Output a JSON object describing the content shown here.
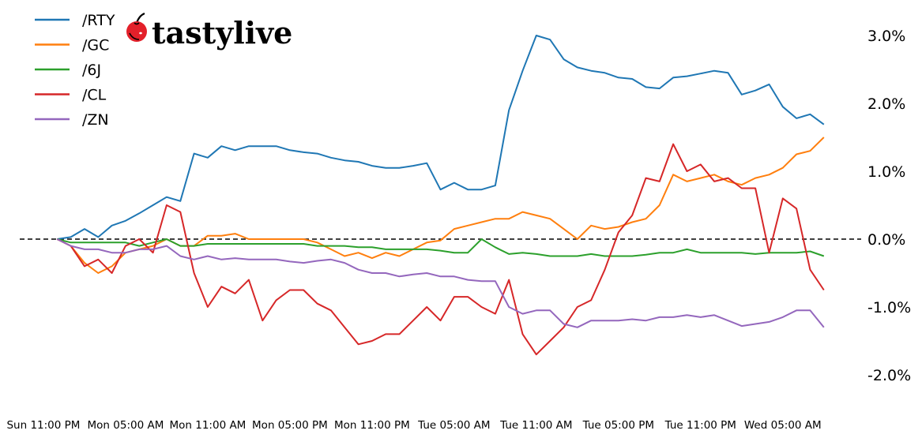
{
  "logo": {
    "text": "tastylive"
  },
  "chart_data": {
    "type": "line",
    "title": "",
    "xlabel": "",
    "ylabel": "",
    "y_unit": "%",
    "ylim": [
      -2.4,
      3.3
    ],
    "grid": false,
    "legend_placement": "top-left",
    "zero_line": {
      "value": 0,
      "style": "dashed",
      "color": "#000000"
    },
    "y_axis_side": "right",
    "yticks": [
      3.0,
      2.0,
      1.0,
      0.0,
      -1.0,
      -2.0
    ],
    "ytick_labels": [
      "3.0%",
      "2.0%",
      "1.0%",
      "0.0%",
      "-1.0%",
      "-2.0%"
    ],
    "xticks": [
      "Sun 23:00",
      "Mon 05:00",
      "Mon 11:00",
      "Mon 17:00",
      "Mon 23:00",
      "Tue 05:00",
      "Tue 11:00",
      "Tue 17:00",
      "Tue 23:00",
      "Wed 05:00"
    ],
    "xtick_labels": [
      "Sun 11:00 PM",
      "Mon 05:00 AM",
      "Mon 11:00 AM",
      "Mon 05:00 PM",
      "Mon 11:00 PM",
      "Tue 05:00 AM",
      "Tue 11:00 AM",
      "Tue 05:00 PM",
      "Tue 11:00 PM",
      "Wed 05:00 AM"
    ],
    "x": [
      "Mon 00:00",
      "Mon 01:00",
      "Mon 02:00",
      "Mon 03:00",
      "Mon 04:00",
      "Mon 05:00",
      "Mon 06:00",
      "Mon 07:00",
      "Mon 08:00",
      "Mon 09:00",
      "Mon 10:00",
      "Mon 11:00",
      "Mon 12:00",
      "Mon 13:00",
      "Mon 14:00",
      "Mon 15:00",
      "Mon 16:00",
      "Mon 17:00",
      "Mon 18:00",
      "Mon 19:00",
      "Mon 20:00",
      "Mon 21:00",
      "Mon 22:00",
      "Mon 23:00",
      "Tue 00:00",
      "Tue 01:00",
      "Tue 02:00",
      "Tue 03:00",
      "Tue 04:00",
      "Tue 05:00",
      "Tue 06:00",
      "Tue 07:00",
      "Tue 08:00",
      "Tue 09:00",
      "Tue 10:00",
      "Tue 11:00",
      "Tue 12:00",
      "Tue 13:00",
      "Tue 14:00",
      "Tue 15:00",
      "Tue 16:00",
      "Tue 17:00",
      "Tue 18:00",
      "Tue 19:00",
      "Tue 20:00",
      "Tue 21:00",
      "Tue 22:00",
      "Tue 23:00",
      "Wed 00:00",
      "Wed 01:00",
      "Wed 02:00",
      "Wed 03:00",
      "Wed 04:00",
      "Wed 05:00",
      "Wed 06:00",
      "Wed 07:00",
      "Wed 08:00"
    ],
    "series": [
      {
        "name": "/RTY",
        "color": "#1f77b4",
        "values": [
          0,
          0.03,
          0.15,
          0.03,
          0.2,
          0.27,
          0.38,
          0.5,
          0.62,
          0.56,
          1.26,
          1.2,
          1.37,
          1.31,
          1.37,
          1.37,
          1.37,
          1.31,
          1.28,
          1.26,
          1.2,
          1.16,
          1.14,
          1.08,
          1.05,
          1.05,
          1.08,
          1.12,
          0.73,
          0.83,
          0.73,
          0.73,
          0.79,
          1.9,
          2.48,
          3.0,
          2.94,
          2.65,
          2.53,
          2.48,
          2.45,
          2.38,
          2.36,
          2.24,
          2.22,
          2.38,
          2.4,
          2.44,
          2.48,
          2.45,
          2.13,
          2.19,
          2.28,
          1.95,
          1.78,
          1.84,
          1.69
        ]
      },
      {
        "name": "/GC",
        "color": "#ff7f0e",
        "values": [
          0,
          -0.1,
          -0.35,
          -0.5,
          -0.4,
          -0.2,
          -0.15,
          -0.1,
          0,
          -0.1,
          -0.1,
          0.05,
          0.05,
          0.08,
          0,
          0,
          0,
          0,
          0,
          -0.05,
          -0.15,
          -0.25,
          -0.2,
          -0.28,
          -0.2,
          -0.25,
          -0.15,
          -0.05,
          -0.02,
          0.15,
          0.2,
          0.25,
          0.3,
          0.3,
          0.4,
          0.35,
          0.3,
          0.15,
          0,
          0.2,
          0.15,
          0.18,
          0.25,
          0.3,
          0.5,
          0.95,
          0.85,
          0.9,
          0.95,
          0.85,
          0.8,
          0.9,
          0.95,
          1.05,
          1.25,
          1.3,
          1.5
        ]
      },
      {
        "name": "/6J",
        "color": "#2ca02c",
        "values": [
          0,
          -0.05,
          -0.05,
          -0.05,
          -0.05,
          -0.05,
          -0.1,
          -0.05,
          0,
          -0.1,
          -0.1,
          -0.07,
          -0.07,
          -0.07,
          -0.07,
          -0.07,
          -0.07,
          -0.07,
          -0.07,
          -0.1,
          -0.1,
          -0.1,
          -0.12,
          -0.12,
          -0.15,
          -0.15,
          -0.15,
          -0.15,
          -0.17,
          -0.2,
          -0.2,
          0,
          -0.12,
          -0.22,
          -0.2,
          -0.22,
          -0.25,
          -0.25,
          -0.25,
          -0.22,
          -0.25,
          -0.25,
          -0.25,
          -0.23,
          -0.2,
          -0.2,
          -0.15,
          -0.2,
          -0.2,
          -0.2,
          -0.2,
          -0.22,
          -0.2,
          -0.2,
          -0.2,
          -0.18,
          -0.25
        ]
      },
      {
        "name": "/CL",
        "color": "#d62728",
        "values": [
          0,
          -0.1,
          -0.4,
          -0.3,
          -0.5,
          -0.1,
          0,
          -0.2,
          0.5,
          0.4,
          -0.5,
          -1.0,
          -0.7,
          -0.8,
          -0.6,
          -1.2,
          -0.9,
          -0.75,
          -0.75,
          -0.95,
          -1.05,
          -1.3,
          -1.55,
          -1.5,
          -1.4,
          -1.4,
          -1.2,
          -1.0,
          -1.2,
          -0.85,
          -0.85,
          -1.0,
          -1.1,
          -0.6,
          -1.4,
          -1.7,
          -1.5,
          -1.3,
          -1.0,
          -0.9,
          -0.45,
          0.1,
          0.35,
          0.9,
          0.85,
          1.4,
          1.0,
          1.1,
          0.85,
          0.9,
          0.75,
          0.75,
          -0.2,
          0.6,
          0.45,
          -0.45,
          -0.75
        ]
      },
      {
        "name": "/ZN",
        "color": "#9467bd",
        "values": [
          0,
          -0.1,
          -0.15,
          -0.15,
          -0.2,
          -0.2,
          -0.15,
          -0.15,
          -0.1,
          -0.25,
          -0.3,
          -0.25,
          -0.3,
          -0.28,
          -0.3,
          -0.3,
          -0.3,
          -0.33,
          -0.35,
          -0.32,
          -0.3,
          -0.35,
          -0.45,
          -0.5,
          -0.5,
          -0.55,
          -0.52,
          -0.5,
          -0.55,
          -0.55,
          -0.6,
          -0.62,
          -0.62,
          -1.0,
          -1.1,
          -1.05,
          -1.05,
          -1.25,
          -1.3,
          -1.2,
          -1.2,
          -1.2,
          -1.18,
          -1.2,
          -1.15,
          -1.15,
          -1.12,
          -1.15,
          -1.12,
          -1.2,
          -1.28,
          -1.25,
          -1.22,
          -1.15,
          -1.05,
          -1.05,
          -1.3
        ]
      }
    ]
  }
}
